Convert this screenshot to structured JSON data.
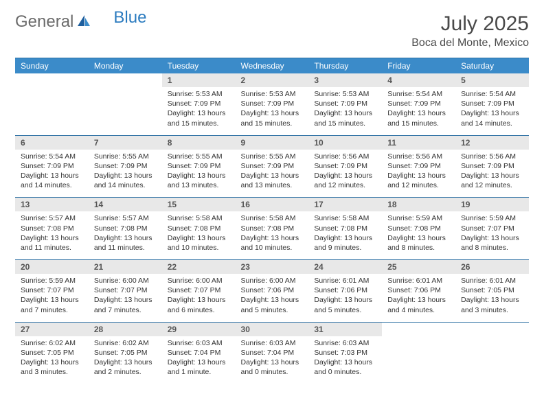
{
  "brand": {
    "text1": "General",
    "text2": "Blue"
  },
  "title": "July 2025",
  "location": "Boca del Monte, Mexico",
  "colors": {
    "header_bg": "#3b8bc9",
    "header_text": "#ffffff",
    "rule": "#2b6fa3",
    "daynum_bg": "#e8e8e8",
    "body_text": "#333333",
    "logo_gray": "#6b6b6b",
    "logo_blue": "#2b7bbf"
  },
  "day_headers": [
    "Sunday",
    "Monday",
    "Tuesday",
    "Wednesday",
    "Thursday",
    "Friday",
    "Saturday"
  ],
  "weeks": [
    {
      "nums": [
        "",
        "",
        "1",
        "2",
        "3",
        "4",
        "5"
      ],
      "cells": [
        null,
        null,
        {
          "sunrise": "Sunrise: 5:53 AM",
          "sunset": "Sunset: 7:09 PM",
          "day1": "Daylight: 13 hours",
          "day2": "and 15 minutes."
        },
        {
          "sunrise": "Sunrise: 5:53 AM",
          "sunset": "Sunset: 7:09 PM",
          "day1": "Daylight: 13 hours",
          "day2": "and 15 minutes."
        },
        {
          "sunrise": "Sunrise: 5:53 AM",
          "sunset": "Sunset: 7:09 PM",
          "day1": "Daylight: 13 hours",
          "day2": "and 15 minutes."
        },
        {
          "sunrise": "Sunrise: 5:54 AM",
          "sunset": "Sunset: 7:09 PM",
          "day1": "Daylight: 13 hours",
          "day2": "and 15 minutes."
        },
        {
          "sunrise": "Sunrise: 5:54 AM",
          "sunset": "Sunset: 7:09 PM",
          "day1": "Daylight: 13 hours",
          "day2": "and 14 minutes."
        }
      ]
    },
    {
      "nums": [
        "6",
        "7",
        "8",
        "9",
        "10",
        "11",
        "12"
      ],
      "cells": [
        {
          "sunrise": "Sunrise: 5:54 AM",
          "sunset": "Sunset: 7:09 PM",
          "day1": "Daylight: 13 hours",
          "day2": "and 14 minutes."
        },
        {
          "sunrise": "Sunrise: 5:55 AM",
          "sunset": "Sunset: 7:09 PM",
          "day1": "Daylight: 13 hours",
          "day2": "and 14 minutes."
        },
        {
          "sunrise": "Sunrise: 5:55 AM",
          "sunset": "Sunset: 7:09 PM",
          "day1": "Daylight: 13 hours",
          "day2": "and 13 minutes."
        },
        {
          "sunrise": "Sunrise: 5:55 AM",
          "sunset": "Sunset: 7:09 PM",
          "day1": "Daylight: 13 hours",
          "day2": "and 13 minutes."
        },
        {
          "sunrise": "Sunrise: 5:56 AM",
          "sunset": "Sunset: 7:09 PM",
          "day1": "Daylight: 13 hours",
          "day2": "and 12 minutes."
        },
        {
          "sunrise": "Sunrise: 5:56 AM",
          "sunset": "Sunset: 7:09 PM",
          "day1": "Daylight: 13 hours",
          "day2": "and 12 minutes."
        },
        {
          "sunrise": "Sunrise: 5:56 AM",
          "sunset": "Sunset: 7:09 PM",
          "day1": "Daylight: 13 hours",
          "day2": "and 12 minutes."
        }
      ]
    },
    {
      "nums": [
        "13",
        "14",
        "15",
        "16",
        "17",
        "18",
        "19"
      ],
      "cells": [
        {
          "sunrise": "Sunrise: 5:57 AM",
          "sunset": "Sunset: 7:08 PM",
          "day1": "Daylight: 13 hours",
          "day2": "and 11 minutes."
        },
        {
          "sunrise": "Sunrise: 5:57 AM",
          "sunset": "Sunset: 7:08 PM",
          "day1": "Daylight: 13 hours",
          "day2": "and 11 minutes."
        },
        {
          "sunrise": "Sunrise: 5:58 AM",
          "sunset": "Sunset: 7:08 PM",
          "day1": "Daylight: 13 hours",
          "day2": "and 10 minutes."
        },
        {
          "sunrise": "Sunrise: 5:58 AM",
          "sunset": "Sunset: 7:08 PM",
          "day1": "Daylight: 13 hours",
          "day2": "and 10 minutes."
        },
        {
          "sunrise": "Sunrise: 5:58 AM",
          "sunset": "Sunset: 7:08 PM",
          "day1": "Daylight: 13 hours",
          "day2": "and 9 minutes."
        },
        {
          "sunrise": "Sunrise: 5:59 AM",
          "sunset": "Sunset: 7:08 PM",
          "day1": "Daylight: 13 hours",
          "day2": "and 8 minutes."
        },
        {
          "sunrise": "Sunrise: 5:59 AM",
          "sunset": "Sunset: 7:07 PM",
          "day1": "Daylight: 13 hours",
          "day2": "and 8 minutes."
        }
      ]
    },
    {
      "nums": [
        "20",
        "21",
        "22",
        "23",
        "24",
        "25",
        "26"
      ],
      "cells": [
        {
          "sunrise": "Sunrise: 5:59 AM",
          "sunset": "Sunset: 7:07 PM",
          "day1": "Daylight: 13 hours",
          "day2": "and 7 minutes."
        },
        {
          "sunrise": "Sunrise: 6:00 AM",
          "sunset": "Sunset: 7:07 PM",
          "day1": "Daylight: 13 hours",
          "day2": "and 7 minutes."
        },
        {
          "sunrise": "Sunrise: 6:00 AM",
          "sunset": "Sunset: 7:07 PM",
          "day1": "Daylight: 13 hours",
          "day2": "and 6 minutes."
        },
        {
          "sunrise": "Sunrise: 6:00 AM",
          "sunset": "Sunset: 7:06 PM",
          "day1": "Daylight: 13 hours",
          "day2": "and 5 minutes."
        },
        {
          "sunrise": "Sunrise: 6:01 AM",
          "sunset": "Sunset: 7:06 PM",
          "day1": "Daylight: 13 hours",
          "day2": "and 5 minutes."
        },
        {
          "sunrise": "Sunrise: 6:01 AM",
          "sunset": "Sunset: 7:06 PM",
          "day1": "Daylight: 13 hours",
          "day2": "and 4 minutes."
        },
        {
          "sunrise": "Sunrise: 6:01 AM",
          "sunset": "Sunset: 7:05 PM",
          "day1": "Daylight: 13 hours",
          "day2": "and 3 minutes."
        }
      ]
    },
    {
      "nums": [
        "27",
        "28",
        "29",
        "30",
        "31",
        "",
        ""
      ],
      "cells": [
        {
          "sunrise": "Sunrise: 6:02 AM",
          "sunset": "Sunset: 7:05 PM",
          "day1": "Daylight: 13 hours",
          "day2": "and 3 minutes."
        },
        {
          "sunrise": "Sunrise: 6:02 AM",
          "sunset": "Sunset: 7:05 PM",
          "day1": "Daylight: 13 hours",
          "day2": "and 2 minutes."
        },
        {
          "sunrise": "Sunrise: 6:03 AM",
          "sunset": "Sunset: 7:04 PM",
          "day1": "Daylight: 13 hours",
          "day2": "and 1 minute."
        },
        {
          "sunrise": "Sunrise: 6:03 AM",
          "sunset": "Sunset: 7:04 PM",
          "day1": "Daylight: 13 hours",
          "day2": "and 0 minutes."
        },
        {
          "sunrise": "Sunrise: 6:03 AM",
          "sunset": "Sunset: 7:03 PM",
          "day1": "Daylight: 13 hours",
          "day2": "and 0 minutes."
        },
        null,
        null
      ]
    }
  ]
}
